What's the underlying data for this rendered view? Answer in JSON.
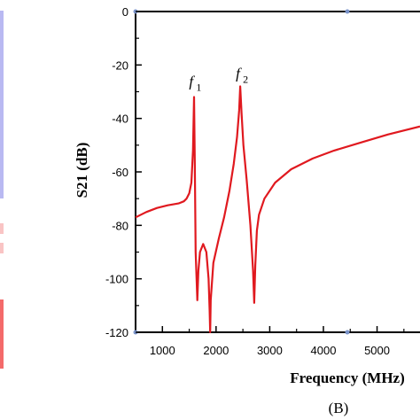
{
  "chart_data": {
    "type": "line",
    "xlabel": "Frequency (MHz)",
    "ylabel": "S21 (dB)",
    "xlim": [
      500,
      5800
    ],
    "ylim": [
      -120,
      0
    ],
    "xticks": [
      1000,
      2000,
      3000,
      4000,
      5000
    ],
    "yticks": [
      0,
      -20,
      -40,
      -60,
      -80,
      -100,
      -120
    ],
    "grid": false,
    "colors": {
      "series": "#e0191f",
      "axis": "#000000",
      "left_strip_blue": "#b9b9f2",
      "left_strip_red": "#f46a6a"
    },
    "series": [
      {
        "x": [
          500,
          700,
          900,
          1100,
          1300,
          1400,
          1450,
          1500,
          1540,
          1570,
          1590,
          1605,
          1620,
          1650,
          1670,
          1700,
          1760,
          1820,
          1860,
          1880,
          1890,
          1900,
          1950,
          2050,
          2150,
          2250,
          2330,
          2390,
          2430,
          2450,
          2475,
          2510,
          2570,
          2640,
          2690,
          2710,
          2730,
          2760,
          2800,
          2900,
          3100,
          3400,
          3800,
          4200,
          4700,
          5200,
          5800
        ],
        "y": [
          -77,
          -75,
          -73.5,
          -72.5,
          -71.8,
          -71,
          -70,
          -68,
          -64,
          -52,
          -32,
          -58,
          -90,
          -108,
          -97,
          -90,
          -87,
          -90,
          -100,
          -112,
          -120,
          -108,
          -94,
          -85,
          -77,
          -67,
          -57,
          -47,
          -37,
          -28,
          -38,
          -50,
          -63,
          -80,
          -97,
          -109,
          -95,
          -82,
          -76,
          -70,
          -64,
          -59,
          -55,
          -52,
          -49,
          -46,
          -43
        ]
      }
    ],
    "annotations": [
      {
        "label": "f",
        "subscript": "1",
        "x": 1580,
        "y": -28
      },
      {
        "label": "f",
        "subscript": "2",
        "x": 2450,
        "y": -25
      }
    ]
  },
  "caption": "(B)"
}
